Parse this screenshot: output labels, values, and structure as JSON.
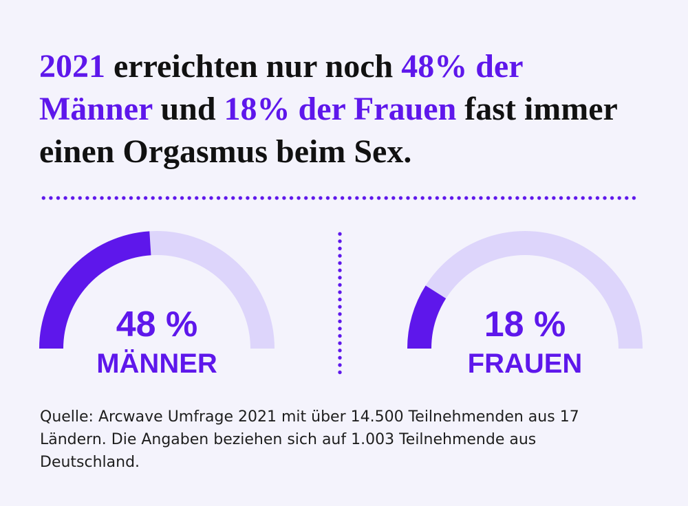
{
  "headline": {
    "lines": [
      [
        "2021",
        " erreichten nur noch ",
        "48% der"
      ],
      [
        "Männer",
        " und ",
        "18% der Frauen",
        " fast immer"
      ],
      [
        "einen Orgasmus beim Sex."
      ]
    ]
  },
  "colors": {
    "background": "#f4f3fc",
    "accent": "#5e17eb",
    "track": "#ddd5fb",
    "text": "#111111"
  },
  "chart_data": [
    {
      "type": "pie",
      "value": 48,
      "max": 100,
      "value_label": "48 %",
      "label": "MÄNNER"
    },
    {
      "type": "pie",
      "value": 18,
      "max": 100,
      "value_label": "18 %",
      "label": "FRAUEN"
    }
  ],
  "source": {
    "lines": [
      "Quelle: Arcwave Umfrage 2021 mit über 14.500 Teilnehmenden aus 17",
      "Ländern. Die Angaben beziehen sich auf 1.003 Teilnehmende aus",
      "Deutschland."
    ]
  }
}
